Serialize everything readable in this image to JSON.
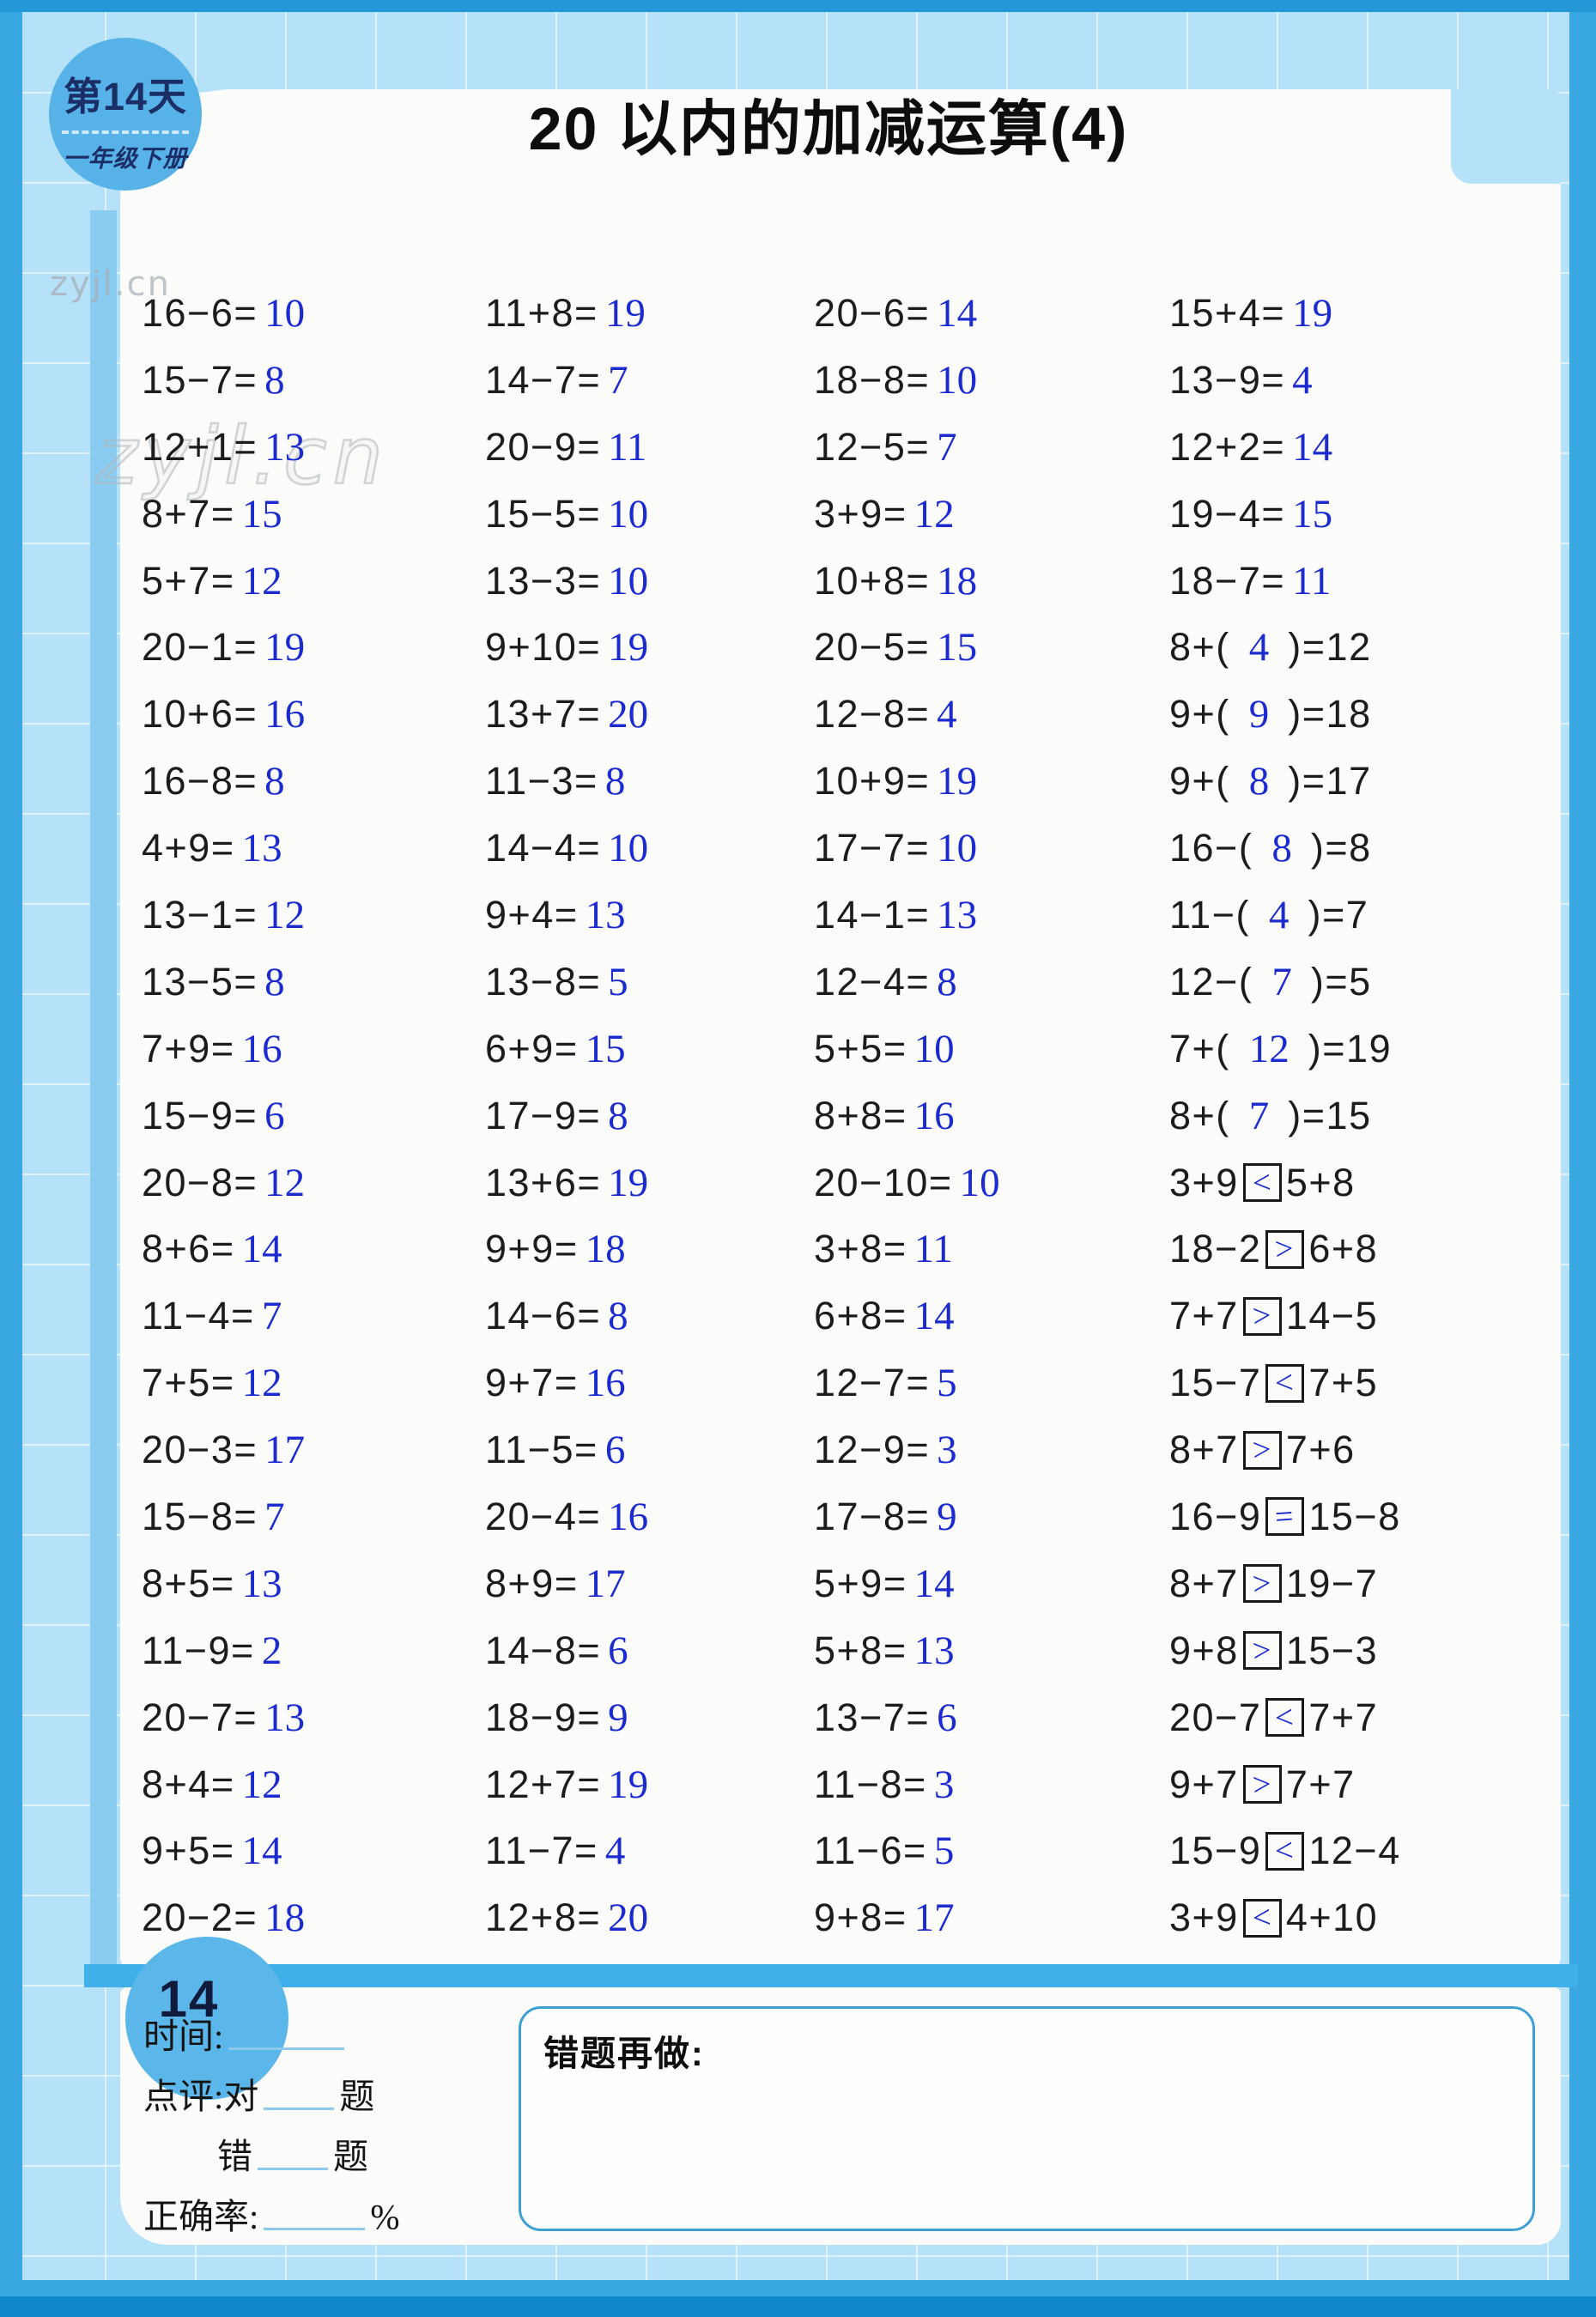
{
  "title": "20 以内的加减运算(4)",
  "badge": {
    "line1": "第14天",
    "line2": "一年级下册"
  },
  "watermark": "zyjl.cn",
  "colors": {
    "answer_ink": "#1b2bd0",
    "print_ink": "#1c1c1c",
    "sheet_blue": "#b5e2f8",
    "frame_blue": "#38a7e2",
    "band_blue": "#41b0ea"
  },
  "footer": {
    "page_number": "14",
    "time_label": "时间:",
    "review_label": "点评:对",
    "correct_suffix": "题",
    "wrong_label": "错",
    "wrong_suffix": "题",
    "accuracy_label": "正确率:",
    "percent_sign": "%",
    "redo_title": "错题再做:"
  },
  "problems": {
    "columns": [
      [
        {
          "q": "16−6=",
          "a": "10"
        },
        {
          "q": "15−7=",
          "a": "8"
        },
        {
          "q": "12+1=",
          "a": "13"
        },
        {
          "q": "8+7=",
          "a": "15"
        },
        {
          "q": "5+7=",
          "a": "12"
        },
        {
          "q": "20−1=",
          "a": "19"
        },
        {
          "q": "10+6=",
          "a": "16"
        },
        {
          "q": "16−8=",
          "a": "8"
        },
        {
          "q": "4+9=",
          "a": "13"
        },
        {
          "q": "13−1=",
          "a": "12"
        },
        {
          "q": "13−5=",
          "a": "8"
        },
        {
          "q": "7+9=",
          "a": "16"
        },
        {
          "q": "15−9=",
          "a": "6"
        },
        {
          "q": "20−8=",
          "a": "12"
        },
        {
          "q": "8+6=",
          "a": "14"
        },
        {
          "q": "11−4=",
          "a": "7"
        },
        {
          "q": "7+5=",
          "a": "12"
        },
        {
          "q": "20−3=",
          "a": "17"
        },
        {
          "q": "15−8=",
          "a": "7"
        },
        {
          "q": "8+5=",
          "a": "13"
        },
        {
          "q": "11−9=",
          "a": "2"
        },
        {
          "q": "20−7=",
          "a": "13"
        },
        {
          "q": "8+4=",
          "a": "12"
        },
        {
          "q": "9+5=",
          "a": "14"
        },
        {
          "q": "20−2=",
          "a": "18"
        }
      ],
      [
        {
          "q": "11+8=",
          "a": "19"
        },
        {
          "q": "14−7=",
          "a": "7"
        },
        {
          "q": "20−9=",
          "a": "11"
        },
        {
          "q": "15−5=",
          "a": "10"
        },
        {
          "q": "13−3=",
          "a": "10"
        },
        {
          "q": "9+10=",
          "a": "19"
        },
        {
          "q": "13+7=",
          "a": "20"
        },
        {
          "q": "11−3=",
          "a": "8"
        },
        {
          "q": "14−4=",
          "a": "10"
        },
        {
          "q": "9+4=",
          "a": "13"
        },
        {
          "q": "13−8=",
          "a": "5"
        },
        {
          "q": "6+9=",
          "a": "15"
        },
        {
          "q": "17−9=",
          "a": "8"
        },
        {
          "q": "13+6=",
          "a": "19"
        },
        {
          "q": "9+9=",
          "a": "18"
        },
        {
          "q": "14−6=",
          "a": "8"
        },
        {
          "q": "9+7=",
          "a": "16"
        },
        {
          "q": "11−5=",
          "a": "6"
        },
        {
          "q": "20−4=",
          "a": "16"
        },
        {
          "q": "8+9=",
          "a": "17"
        },
        {
          "q": "14−8=",
          "a": "6"
        },
        {
          "q": "18−9=",
          "a": "9"
        },
        {
          "q": "12+7=",
          "a": "19"
        },
        {
          "q": "11−7=",
          "a": "4"
        },
        {
          "q": "12+8=",
          "a": "20"
        }
      ],
      [
        {
          "q": "20−6=",
          "a": "14"
        },
        {
          "q": "18−8=",
          "a": "10"
        },
        {
          "q": "12−5=",
          "a": "7"
        },
        {
          "q": "3+9=",
          "a": "12"
        },
        {
          "q": "10+8=",
          "a": "18"
        },
        {
          "q": "20−5=",
          "a": "15"
        },
        {
          "q": "12−8=",
          "a": "4"
        },
        {
          "q": "10+9=",
          "a": "19"
        },
        {
          "q": "17−7=",
          "a": "10"
        },
        {
          "q": "14−1=",
          "a": "13"
        },
        {
          "q": "12−4=",
          "a": "8"
        },
        {
          "q": "5+5=",
          "a": "10"
        },
        {
          "q": "8+8=",
          "a": "16"
        },
        {
          "q": "20−10=",
          "a": "10"
        },
        {
          "q": "3+8=",
          "a": "11"
        },
        {
          "q": "6+8=",
          "a": "14"
        },
        {
          "q": "12−7=",
          "a": "5"
        },
        {
          "q": "12−9=",
          "a": "3"
        },
        {
          "q": "17−8=",
          "a": "9"
        },
        {
          "q": "5+9=",
          "a": "14"
        },
        {
          "q": "5+8=",
          "a": "13"
        },
        {
          "q": "13−7=",
          "a": "6"
        },
        {
          "q": "11−8=",
          "a": "3"
        },
        {
          "q": "11−6=",
          "a": "5"
        },
        {
          "q": "9+8=",
          "a": "17"
        }
      ],
      [
        {
          "q": "15+4=",
          "a": "19"
        },
        {
          "q": "13−9=",
          "a": "4"
        },
        {
          "q": "12+2=",
          "a": "14"
        },
        {
          "q": "19−4=",
          "a": "15"
        },
        {
          "q": "18−7=",
          "a": "11"
        },
        {
          "pre": "8+(",
          "a": "4",
          "post": ")=12"
        },
        {
          "pre": "9+(",
          "a": "9",
          "post": ")=18"
        },
        {
          "pre": "9+(",
          "a": "8",
          "post": ")=17"
        },
        {
          "pre": "16−(",
          "a": "8",
          "post": ")=8"
        },
        {
          "pre": "11−(",
          "a": "4",
          "post": ")=7"
        },
        {
          "pre": "12−(",
          "a": "7",
          "post": ")=5"
        },
        {
          "pre": "7+(",
          "a": "12",
          "post": ")=19"
        },
        {
          "pre": "8+(",
          "a": "7",
          "post": ")=15"
        },
        {
          "l": "3+9",
          "sym": "<",
          "r": "5+8"
        },
        {
          "l": "18−2",
          "sym": ">",
          "r": "6+8"
        },
        {
          "l": "7+7",
          "sym": ">",
          "r": "14−5"
        },
        {
          "l": "15−7",
          "sym": "<",
          "r": "7+5"
        },
        {
          "l": "8+7",
          "sym": ">",
          "r": "7+6"
        },
        {
          "l": "16−9",
          "sym": "=",
          "r": "15−8"
        },
        {
          "l": "8+7",
          "sym": ">",
          "r": "19−7"
        },
        {
          "l": "9+8",
          "sym": ">",
          "r": "15−3"
        },
        {
          "l": "20−7",
          "sym": "<",
          "r": "7+7"
        },
        {
          "l": "9+7",
          "sym": ">",
          "r": "7+7"
        },
        {
          "l": "15−9",
          "sym": "<",
          "r": "12−4"
        },
        {
          "l": "3+9",
          "sym": "<",
          "r": "4+10"
        }
      ]
    ]
  }
}
